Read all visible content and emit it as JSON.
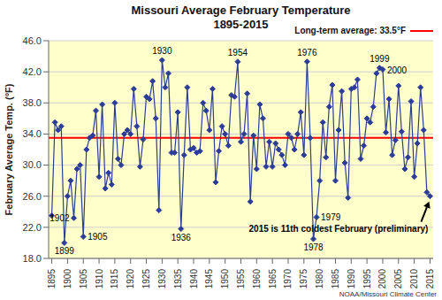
{
  "chart_data": {
    "type": "line",
    "title": "Missouri Average February Temperature",
    "subtitle": "1895-2015",
    "y_label": "February Average Temp. (°F)",
    "source": "NOAA/Missouri Climate Center",
    "x": [
      1895,
      1896,
      1897,
      1898,
      1899,
      1900,
      1901,
      1902,
      1903,
      1904,
      1905,
      1906,
      1907,
      1908,
      1909,
      1910,
      1911,
      1912,
      1913,
      1914,
      1915,
      1916,
      1917,
      1918,
      1919,
      1920,
      1921,
      1922,
      1923,
      1924,
      1925,
      1926,
      1927,
      1928,
      1929,
      1930,
      1931,
      1932,
      1933,
      1934,
      1935,
      1936,
      1937,
      1938,
      1939,
      1940,
      1941,
      1942,
      1943,
      1944,
      1945,
      1946,
      1947,
      1948,
      1949,
      1950,
      1951,
      1952,
      1953,
      1954,
      1955,
      1956,
      1957,
      1958,
      1959,
      1960,
      1961,
      1962,
      1963,
      1964,
      1965,
      1966,
      1967,
      1968,
      1969,
      1970,
      1971,
      1972,
      1973,
      1974,
      1975,
      1976,
      1977,
      1978,
      1979,
      1980,
      1981,
      1982,
      1983,
      1984,
      1985,
      1986,
      1987,
      1988,
      1989,
      1990,
      1991,
      1992,
      1993,
      1994,
      1995,
      1996,
      1997,
      1998,
      1999,
      2000,
      2001,
      2002,
      2003,
      2004,
      2005,
      2006,
      2007,
      2008,
      2009,
      2010,
      2011,
      2012,
      2013,
      2014,
      2015
    ],
    "values": [
      23.5,
      35.5,
      34.5,
      35.0,
      20.0,
      26.0,
      28.0,
      23.2,
      29.5,
      30.0,
      20.8,
      32.0,
      33.5,
      33.8,
      37.0,
      28.5,
      37.8,
      27.0,
      29.0,
      27.5,
      38.0,
      30.8,
      30.0,
      34.0,
      34.5,
      34.0,
      39.8,
      35.0,
      29.8,
      33.3,
      38.8,
      38.5,
      40.8,
      36.0,
      24.2,
      43.5,
      40.0,
      41.8,
      31.6,
      31.6,
      36.8,
      21.8,
      31.3,
      40.0,
      32.0,
      32.2,
      31.6,
      31.8,
      38.0,
      37.0,
      34.5,
      39.8,
      27.8,
      31.8,
      35.0,
      34.0,
      32.5,
      39.0,
      38.8,
      43.3,
      33.0,
      34.0,
      39.2,
      25.3,
      33.8,
      29.5,
      37.8,
      36.0,
      29.8,
      33.0,
      29.8,
      32.8,
      32.0,
      31.3,
      30.0,
      34.0,
      33.5,
      32.0,
      34.0,
      36.8,
      31.3,
      43.3,
      33.5,
      20.5,
      23.3,
      28.0,
      35.5,
      31.0,
      37.5,
      40.3,
      28.0,
      34.5,
      39.5,
      30.3,
      25.8,
      39.8,
      40.0,
      41.0,
      30.8,
      32.5,
      36.0,
      35.5,
      37.5,
      41.8,
      42.5,
      42.3,
      34.2,
      38.5,
      31.3,
      33.2,
      40.2,
      34.3,
      29.5,
      31.0,
      38.2,
      28.5,
      32.8,
      40.0,
      34.5,
      26.5,
      26.0
    ],
    "color": "#2b3c99",
    "marker": "diamond",
    "line_style": "solid",
    "xlim": [
      1894,
      2016
    ],
    "xticks": [
      1895,
      1900,
      1905,
      1910,
      1915,
      1920,
      1925,
      1930,
      1935,
      1940,
      1945,
      1950,
      1955,
      1960,
      1965,
      1970,
      1975,
      1980,
      1985,
      1990,
      1995,
      2000,
      2005,
      2010,
      2015
    ],
    "ylim": [
      18,
      46
    ],
    "yticks": [
      {
        "value": 18,
        "label": "18.0"
      },
      {
        "value": 22,
        "label": "22.0"
      },
      {
        "value": 26,
        "label": "26.0"
      },
      {
        "value": 30,
        "label": "30.0"
      },
      {
        "value": 34,
        "label": "34.0"
      },
      {
        "value": 38,
        "label": "38.0"
      },
      {
        "value": 42,
        "label": "42.0"
      },
      {
        "value": 46,
        "label": "46.0"
      }
    ],
    "grid": true,
    "reference_line": {
      "value": 33.5,
      "label": "Long-term average: 33.5°F",
      "color": "#ff0000"
    },
    "annotations": [
      {
        "text": "1899",
        "x": 1899
      },
      {
        "text": "1902",
        "x": 1902
      },
      {
        "text": "1905",
        "x": 1905
      },
      {
        "text": "1930",
        "x": 1930
      },
      {
        "text": "1936",
        "x": 1936
      },
      {
        "text": "1954",
        "x": 1954
      },
      {
        "text": "1976",
        "x": 1976
      },
      {
        "text": "1978",
        "x": 1978
      },
      {
        "text": "1979",
        "x": 1979
      },
      {
        "text": "1999",
        "x": 1999
      },
      {
        "text": "2000",
        "x": 2000
      },
      {
        "text": "2015 is 11th coldest February (preliminary)",
        "x": 2015
      }
    ]
  }
}
